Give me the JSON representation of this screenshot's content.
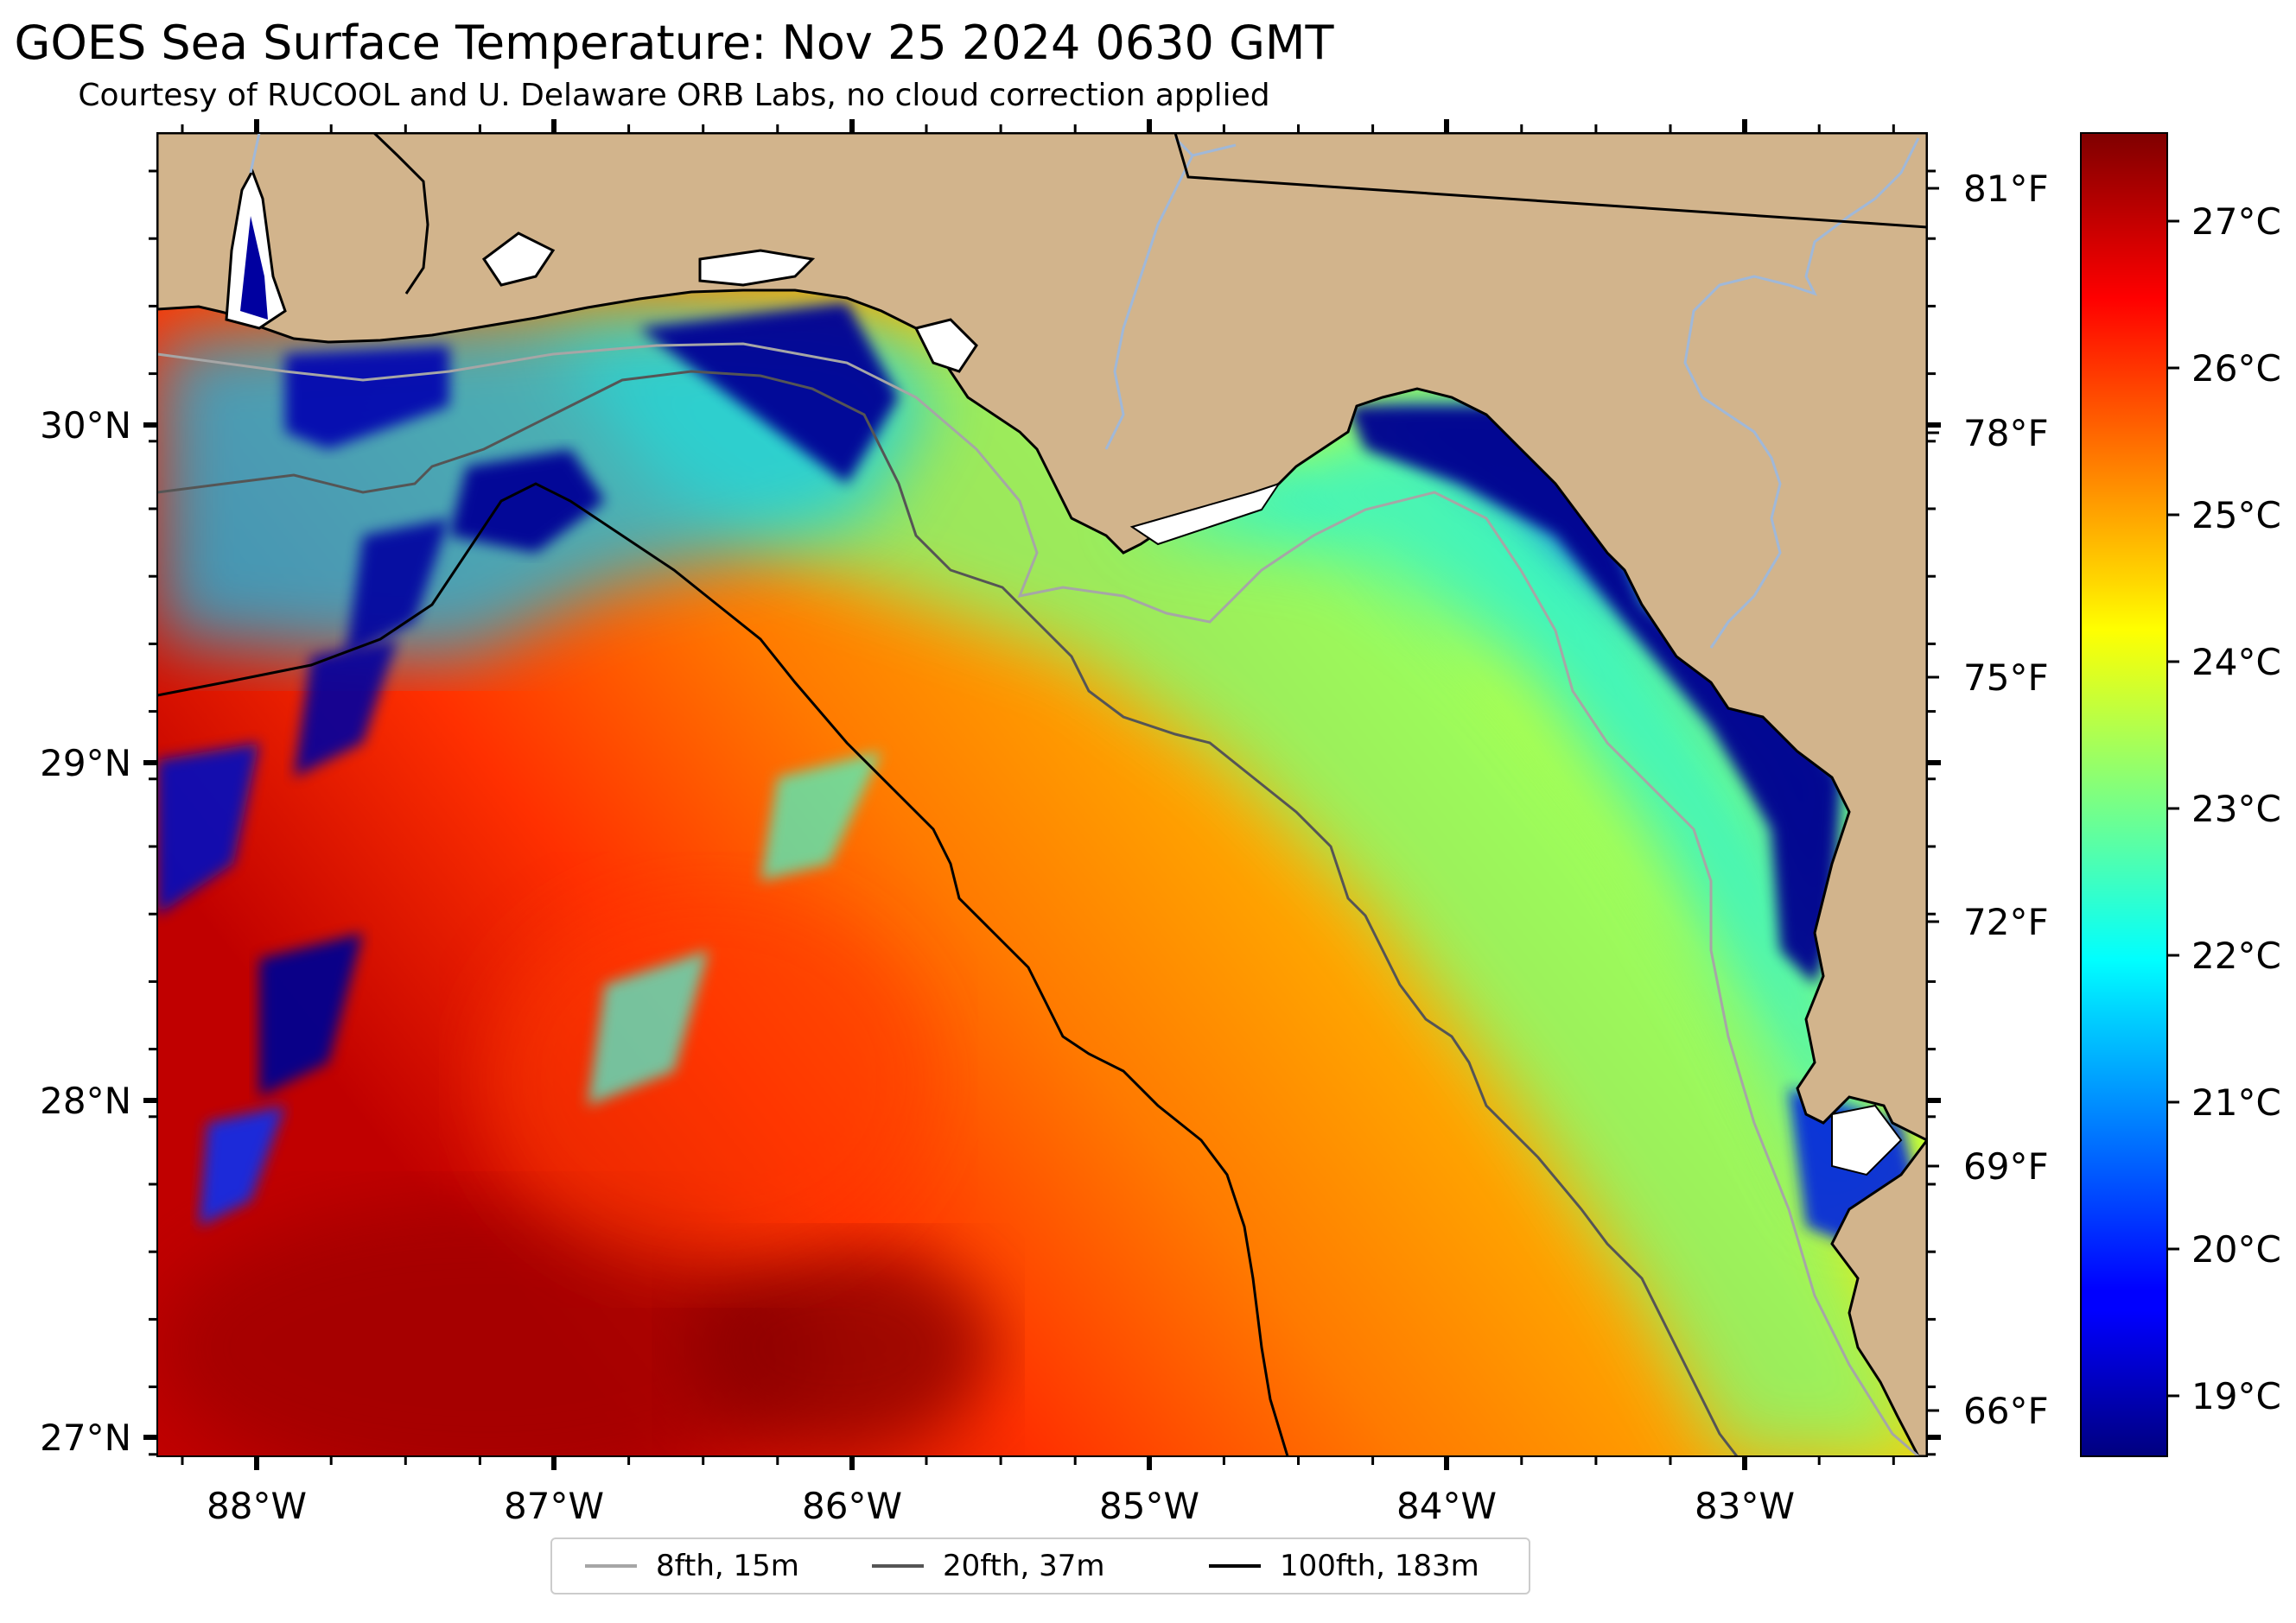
{
  "title": "GOES Sea Surface Temperature: Nov 25 2024 0630 GMT",
  "subtitle": "Courtesy of RUCOOL and U. Delaware ORB Labs, no cloud correction applied",
  "colors": {
    "land": "#d2b48c",
    "coastline": "#000000",
    "rivers": "#a0b8d8",
    "no_data": "#ffffff"
  },
  "map": {
    "lon_range": [
      -88.33,
      -82.38
    ],
    "lat_range": [
      26.93,
      30.86
    ],
    "lon_ticks": [
      "88°W",
      "87°W",
      "86°W",
      "85°W",
      "84°W",
      "83°W"
    ],
    "lat_ticks": [
      "30°N",
      "29°N",
      "28°N",
      "27°N"
    ],
    "right_ticks_f": [
      "81°F",
      "78°F",
      "75°F",
      "72°F",
      "69°F",
      "66°F"
    ]
  },
  "colorbar": {
    "colormap": "jet",
    "range_c": [
      18.6,
      27.6
    ],
    "labels": [
      "27°C",
      "26°C",
      "25°C",
      "24°C",
      "23°C",
      "22°C",
      "21°C",
      "20°C",
      "19°C"
    ]
  },
  "legend": {
    "items": [
      {
        "label": "8fth, 15m",
        "color": "#a6a6a6"
      },
      {
        "label": "20fth, 37m",
        "color": "#555555"
      },
      {
        "label": "100fth, 183m",
        "color": "#000000"
      }
    ]
  }
}
